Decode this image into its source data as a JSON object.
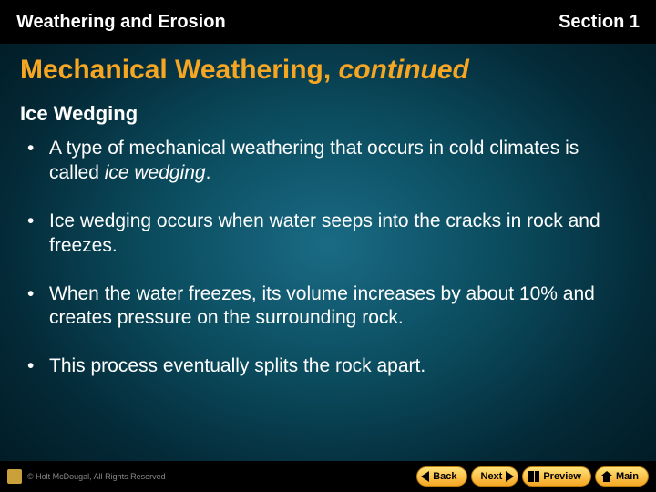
{
  "header": {
    "left": "Weathering and Erosion",
    "right": "Section 1"
  },
  "title": {
    "main": "Mechanical Weathering, ",
    "cont": "continued"
  },
  "subtitle": "Ice Wedging",
  "bullets": [
    {
      "pre": "A type of mechanical weathering that occurs in cold climates is called ",
      "em": "ice wedging",
      "post": "."
    },
    {
      "pre": "Ice wedging occurs when water seeps into the cracks in rock and freezes.",
      "em": "",
      "post": ""
    },
    {
      "pre": "When the water freezes, its volume increases by about 10% and creates pressure on the surrounding rock.",
      "em": "",
      "post": ""
    },
    {
      "pre": "This process eventually splits the rock apart.",
      "em": "",
      "post": ""
    }
  ],
  "copyright": "© Holt McDougal, All Rights Reserved",
  "nav": {
    "back": "Back",
    "next": "Next",
    "preview": "Preview",
    "main": "Main"
  },
  "colors": {
    "accent": "#f6a623",
    "header_bg": "#000000",
    "text": "#ffffff"
  }
}
